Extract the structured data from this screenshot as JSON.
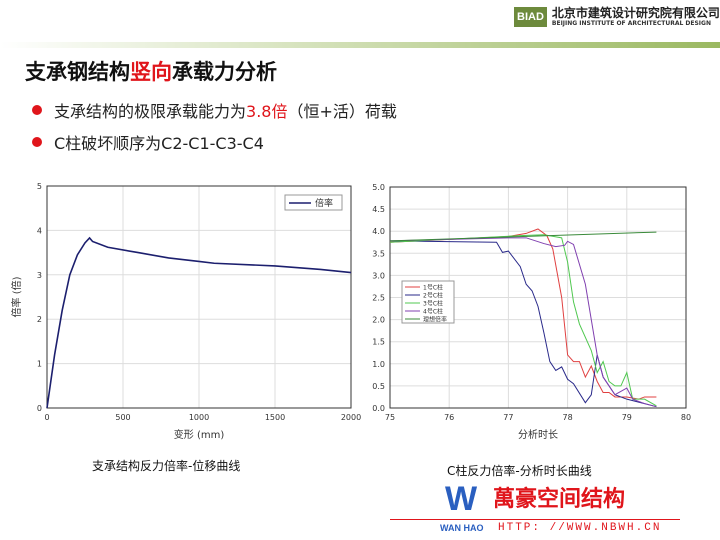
{
  "header": {
    "logo_text": "BIAD",
    "org_cn": "北京市建筑设计研究院有限公司",
    "org_en": "BEIJING INSTITUTE OF ARCHITECTURAL DESIGN"
  },
  "title": {
    "pre": "支承钢结构",
    "highlight": "竖向",
    "post": "承载力分析"
  },
  "bullets": [
    {
      "pre": "支承结构的极限承载能力为",
      "highlight": "3.8倍",
      "post": "（恒+活）荷载"
    },
    {
      "pre": "C柱破坏顺序为C2-C1-C3-C4",
      "highlight": "",
      "post": ""
    }
  ],
  "captions": [
    "支承结构反力倍率-位移曲线",
    "C柱反力倍率-分析时长曲线"
  ],
  "watermark": {
    "logo": "W",
    "brand_en": "WAN HAO",
    "brand_cn": "萬豪空间结构",
    "url": "HTTP: //WWW.NBWH.CN"
  },
  "colors": {
    "accent": "#e0151b",
    "brand": "#6d8a3c"
  },
  "chart_data": [
    {
      "type": "line",
      "xlabel": "变形 (mm)",
      "ylabel": "倍率 (倍)",
      "xlim": [
        0,
        2000
      ],
      "ylim": [
        0,
        5
      ],
      "xticks": [
        0,
        500,
        1000,
        1500,
        2000
      ],
      "yticks": [
        0,
        1,
        2,
        3,
        4,
        5
      ],
      "grid": true,
      "legend": "top-right",
      "series": [
        {
          "name": "倍率",
          "color": "#1c1f6e",
          "x": [
            0,
            50,
            100,
            150,
            200,
            250,
            280,
            300,
            400,
            600,
            800,
            1000,
            1100,
            1500,
            1800,
            2000
          ],
          "y": [
            0,
            1.2,
            2.2,
            3.0,
            3.45,
            3.72,
            3.83,
            3.75,
            3.62,
            3.5,
            3.38,
            3.3,
            3.26,
            3.2,
            3.12,
            3.05
          ]
        }
      ]
    },
    {
      "type": "line",
      "xlabel": "分析时长",
      "ylabel": "",
      "xlim": [
        75,
        80
      ],
      "ylim": [
        0,
        5
      ],
      "xticks": [
        75,
        76,
        77,
        78,
        79,
        80
      ],
      "yticks": [
        0,
        0.5,
        1,
        1.5,
        2,
        2.5,
        3,
        3.5,
        4,
        4.5,
        5
      ],
      "ytick_labels": [
        "0.0",
        "0.5",
        "1.0",
        "1.5",
        "2.0",
        "2.5",
        "3.0",
        "3.5",
        "4.0",
        "4.5",
        "5.0"
      ],
      "grid": true,
      "legend": "center-left",
      "series": [
        {
          "name": "1号C柱",
          "color": "#e04040",
          "x": [
            75,
            77,
            77.3,
            77.5,
            77.65,
            77.75,
            77.9,
            78,
            78.1,
            78.2,
            78.3,
            78.4,
            78.5,
            78.6,
            78.7,
            78.8,
            79,
            79.2,
            79.3,
            79.5
          ],
          "y": [
            3.75,
            3.88,
            3.95,
            4.05,
            3.9,
            3.6,
            2.5,
            1.2,
            1.05,
            1.05,
            0.7,
            0.95,
            0.6,
            0.35,
            0.35,
            0.25,
            0.25,
            0.2,
            0.25,
            0.25
          ]
        },
        {
          "name": "2号C柱",
          "color": "#2a2a8a",
          "x": [
            75,
            76.8,
            76.9,
            77,
            77.2,
            77.3,
            77.4,
            77.5,
            77.6,
            77.7,
            77.8,
            77.9,
            78,
            78.1,
            78.3,
            78.4,
            78.5,
            78.6,
            78.8,
            79,
            79.3,
            79.5
          ],
          "y": [
            3.78,
            3.75,
            3.52,
            3.55,
            3.2,
            2.8,
            2.65,
            2.3,
            1.7,
            1.05,
            0.85,
            0.93,
            0.65,
            0.55,
            0.12,
            0.3,
            1.2,
            0.7,
            0.3,
            0.2,
            0.1,
            0.03
          ]
        },
        {
          "name": "3号C柱",
          "color": "#50c850",
          "x": [
            75,
            77.2,
            77.6,
            77.9,
            78,
            78.1,
            78.2,
            78.4,
            78.5,
            78.6,
            78.7,
            78.8,
            78.9,
            79,
            79.1,
            79.3,
            79.5
          ],
          "y": [
            3.75,
            3.9,
            3.92,
            3.85,
            3.3,
            2.4,
            1.9,
            1.3,
            0.8,
            1.05,
            0.6,
            0.5,
            0.5,
            0.8,
            0.2,
            0.2,
            0.05
          ]
        },
        {
          "name": "4号C柱",
          "color": "#8040b0",
          "x": [
            75,
            77,
            77.3,
            77.6,
            77.8,
            77.95,
            78,
            78.1,
            78.3,
            78.5,
            78.6,
            78.8,
            79,
            79.1,
            79.3,
            79.5
          ],
          "y": [
            3.78,
            3.85,
            3.85,
            3.72,
            3.65,
            3.68,
            3.77,
            3.7,
            2.8,
            1.2,
            0.7,
            0.3,
            0.45,
            0.2,
            0.1,
            0.03
          ]
        },
        {
          "name": "理想倍率",
          "color": "#3a8a3a",
          "x": [
            75,
            79.5
          ],
          "y": [
            3.78,
            3.98
          ]
        }
      ]
    }
  ]
}
